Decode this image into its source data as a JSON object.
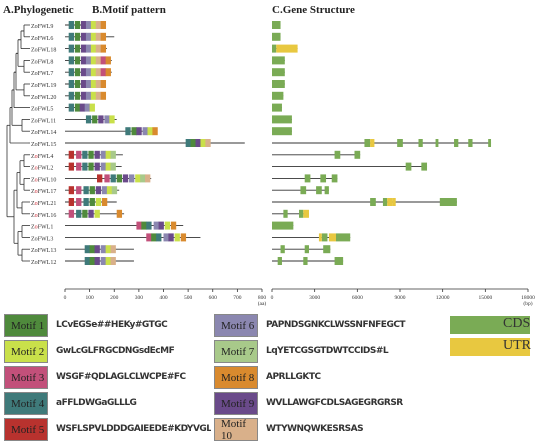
{
  "panels": {
    "phylo_title": "A.Phylogenetic",
    "motif_title": "B.Motif  pattern",
    "gene_title": "C.Gene Structure"
  },
  "genes": [
    "ZoFWL9",
    "ZoFWL6",
    "ZoFWL18",
    "ZoFWL8",
    "ZoFWL7",
    "ZoFWL19",
    "ZoFWL20",
    "ZoFWL5",
    "ZoFWL11",
    "ZoFWL14",
    "ZoFWL15",
    "ZoFWL4",
    "ZoFWL2",
    "ZoFWL10",
    "ZoFWL17",
    "ZoFWL21",
    "ZoFWL16",
    "ZoFWL1",
    "ZoFWL3",
    "ZoFWL13",
    "ZoFWL12"
  ],
  "red_label_genes": [
    "ZoFWL4",
    "ZoFWL2",
    "ZoFWL10",
    "ZoFWL17",
    "ZoFWL21",
    "ZoFWL16",
    "ZoFWL1"
  ],
  "motif_axis": {
    "ticks": [
      "0",
      "100",
      "200",
      "300",
      "400",
      "500",
      "600",
      "700",
      "800"
    ],
    "unit": "(aa)",
    "max": 800
  },
  "gene_axis": {
    "ticks": [
      "0",
      "3000",
      "6000",
      "9000",
      "12000",
      "15000",
      "18000"
    ],
    "unit": "(bp)",
    "max": 18000
  },
  "motif_colors": {
    "1": "#4f8a3c",
    "2": "#c9e04a",
    "3": "#c2507a",
    "4": "#3f7a7a",
    "5": "#b8322e",
    "6": "#8b87b0",
    "7": "#a8c98a",
    "8": "#d98a2e",
    "9": "#6a4a8a",
    "10": "#d9b08a"
  },
  "motif_legend": [
    {
      "label": "Motif 1",
      "color": "#4f8a3c",
      "logo": "LCvEGSe##HEKy#GTGC"
    },
    {
      "label": "Motif 2",
      "color": "#c9e04a",
      "logo": "GwLcGLFRGCDNGsdEcMF"
    },
    {
      "label": "Motif 3",
      "color": "#c2507a",
      "logo": "WSGF#QDLAGLCLWCPE#FC"
    },
    {
      "label": "Motif 4",
      "color": "#3f7a7a",
      "logo": "aFFLDWGaGLLLG"
    },
    {
      "label": "Motif 5",
      "color": "#b8322e",
      "logo": "WSFLSPVLDDDGAIEEDE#KDYVGLEVGDSEDLR"
    },
    {
      "label": "Motif 6",
      "color": "#8b87b0",
      "logo": "PAPNDSGNKCLWSSNFNFEGCT"
    },
    {
      "label": "Motif 7",
      "color": "#a8c98a",
      "logo": "LqYETCGSGTDWTCCIDS#L"
    },
    {
      "label": "Motif 8",
      "color": "#d98a2e",
      "logo": "APRLLGKTC"
    },
    {
      "label": "Motif 9",
      "color": "#6a4a8a",
      "logo": "WVLLAWGFCDLSAGEGRGRSR"
    },
    {
      "label": "Motif 10",
      "color": "#d9b08a",
      "logo": "WTYWNQWKESRSAS"
    }
  ],
  "structure_legend": [
    {
      "label": "CDS",
      "color": "#7aab55"
    },
    {
      "label": "UTR",
      "color": "#e8c840"
    }
  ],
  "motif_rows": [
    {
      "length": 160,
      "motifs": [
        [
          15,
          4
        ],
        [
          40,
          1
        ],
        [
          65,
          9
        ],
        [
          85,
          6
        ],
        [
          105,
          2
        ],
        [
          125,
          10
        ],
        [
          145,
          8
        ]
      ]
    },
    {
      "length": 200,
      "motifs": [
        [
          15,
          4
        ],
        [
          40,
          1
        ],
        [
          65,
          9
        ],
        [
          85,
          6
        ],
        [
          105,
          2
        ],
        [
          125,
          10
        ],
        [
          145,
          8
        ]
      ]
    },
    {
      "length": 170,
      "motifs": [
        [
          15,
          4
        ],
        [
          40,
          1
        ],
        [
          65,
          9
        ],
        [
          85,
          6
        ],
        [
          105,
          2
        ],
        [
          125,
          10
        ],
        [
          145,
          8
        ]
      ]
    },
    {
      "length": 190,
      "motifs": [
        [
          15,
          4
        ],
        [
          40,
          1
        ],
        [
          65,
          9
        ],
        [
          85,
          6
        ],
        [
          105,
          2
        ],
        [
          125,
          10
        ],
        [
          145,
          3
        ],
        [
          165,
          8
        ]
      ]
    },
    {
      "length": 190,
      "motifs": [
        [
          15,
          4
        ],
        [
          40,
          1
        ],
        [
          65,
          9
        ],
        [
          85,
          6
        ],
        [
          105,
          2
        ],
        [
          125,
          10
        ],
        [
          145,
          3
        ],
        [
          165,
          8
        ]
      ]
    },
    {
      "length": 165,
      "motifs": [
        [
          15,
          4
        ],
        [
          40,
          1
        ],
        [
          65,
          9
        ],
        [
          85,
          6
        ],
        [
          105,
          2
        ],
        [
          125,
          10
        ],
        [
          145,
          8
        ]
      ]
    },
    {
      "length": 165,
      "motifs": [
        [
          15,
          4
        ],
        [
          40,
          1
        ],
        [
          65,
          9
        ],
        [
          85,
          6
        ],
        [
          105,
          2
        ],
        [
          125,
          10
        ],
        [
          145,
          8
        ]
      ]
    },
    {
      "length": 120,
      "motifs": [
        [
          15,
          4
        ],
        [
          40,
          1
        ],
        [
          60,
          9
        ],
        [
          80,
          6
        ],
        [
          100,
          2
        ]
      ]
    },
    {
      "length": 210,
      "motifs": [
        [
          85,
          4
        ],
        [
          110,
          1
        ],
        [
          135,
          9
        ],
        [
          160,
          6
        ],
        [
          180,
          2
        ]
      ]
    },
    {
      "length": 370,
      "motifs": [
        [
          245,
          4
        ],
        [
          270,
          1
        ],
        [
          290,
          9
        ],
        [
          315,
          6
        ],
        [
          335,
          2
        ],
        [
          355,
          8
        ]
      ]
    },
    {
      "length": 730,
      "motifs": [
        [
          490,
          4
        ],
        [
          510,
          1
        ],
        [
          530,
          9
        ],
        [
          550,
          2
        ],
        [
          570,
          10
        ]
      ]
    },
    {
      "length": 235,
      "motifs": [
        [
          15,
          5
        ],
        [
          45,
          3
        ],
        [
          70,
          4
        ],
        [
          95,
          1
        ],
        [
          120,
          9
        ],
        [
          145,
          6
        ],
        [
          165,
          2
        ],
        [
          185,
          7
        ]
      ]
    },
    {
      "length": 230,
      "motifs": [
        [
          15,
          5
        ],
        [
          45,
          3
        ],
        [
          70,
          4
        ],
        [
          95,
          1
        ],
        [
          120,
          9
        ],
        [
          145,
          6
        ],
        [
          165,
          2
        ],
        [
          185,
          7
        ]
      ]
    },
    {
      "length": 350,
      "motifs": [
        [
          130,
          5
        ],
        [
          160,
          3
        ],
        [
          185,
          4
        ],
        [
          210,
          1
        ],
        [
          235,
          9
        ],
        [
          260,
          6
        ],
        [
          285,
          2
        ],
        [
          305,
          7
        ],
        [
          325,
          10
        ]
      ]
    },
    {
      "length": 220,
      "motifs": [
        [
          15,
          5
        ],
        [
          45,
          3
        ],
        [
          75,
          4
        ],
        [
          100,
          1
        ],
        [
          125,
          9
        ],
        [
          150,
          6
        ],
        [
          170,
          2
        ],
        [
          190,
          7
        ]
      ]
    },
    {
      "length": 210,
      "motifs": [
        [
          15,
          5
        ],
        [
          45,
          3
        ],
        [
          75,
          4
        ],
        [
          100,
          1
        ],
        [
          125,
          2
        ],
        [
          150,
          8
        ]
      ]
    },
    {
      "length": 240,
      "motifs": [
        [
          15,
          3
        ],
        [
          45,
          4
        ],
        [
          70,
          1
        ],
        [
          95,
          9
        ],
        [
          120,
          2
        ],
        [
          210,
          8
        ]
      ]
    },
    {
      "length": 480,
      "motifs": [
        [
          290,
          3
        ],
        [
          310,
          1
        ],
        [
          330,
          4
        ],
        [
          360,
          6
        ],
        [
          380,
          9
        ],
        [
          405,
          2
        ],
        [
          430,
          8
        ]
      ]
    },
    {
      "length": 550,
      "motifs": [
        [
          330,
          3
        ],
        [
          350,
          1
        ],
        [
          370,
          4
        ],
        [
          400,
          6
        ],
        [
          420,
          9
        ],
        [
          445,
          2
        ],
        [
          470,
          8
        ]
      ]
    },
    {
      "length": 280,
      "motifs": [
        [
          80,
          4
        ],
        [
          100,
          1
        ],
        [
          120,
          9
        ],
        [
          145,
          6
        ],
        [
          165,
          2
        ],
        [
          185,
          10
        ]
      ]
    },
    {
      "length": 280,
      "motifs": [
        [
          80,
          4
        ],
        [
          100,
          1
        ],
        [
          120,
          9
        ],
        [
          145,
          6
        ],
        [
          165,
          2
        ],
        [
          185,
          10
        ]
      ]
    }
  ],
  "gene_rows": [
    {
      "length": 600,
      "cds": [
        [
          0,
          600
        ]
      ],
      "utr": []
    },
    {
      "length": 600,
      "cds": [
        [
          0,
          600
        ]
      ],
      "utr": []
    },
    {
      "length": 1800,
      "cds": [
        [
          0,
          300
        ]
      ],
      "utr": [
        [
          300,
          1800
        ]
      ]
    },
    {
      "length": 900,
      "cds": [
        [
          0,
          900
        ]
      ],
      "utr": []
    },
    {
      "length": 900,
      "cds": [
        [
          0,
          900
        ]
      ],
      "utr": []
    },
    {
      "length": 900,
      "cds": [
        [
          0,
          900
        ]
      ],
      "utr": []
    },
    {
      "length": 800,
      "cds": [
        [
          0,
          800
        ]
      ],
      "utr": []
    },
    {
      "length": 700,
      "cds": [
        [
          0,
          700
        ]
      ],
      "utr": []
    },
    {
      "length": 1400,
      "cds": [
        [
          0,
          1400
        ]
      ],
      "utr": []
    },
    {
      "length": 1400,
      "cds": [
        [
          0,
          1400
        ]
      ],
      "utr": []
    },
    {
      "length": 15400,
      "cds": [
        [
          6500,
          6900
        ],
        [
          8800,
          9200
        ],
        [
          10300,
          10600
        ],
        [
          11500,
          11700
        ],
        [
          12800,
          13100
        ],
        [
          13800,
          14100
        ],
        [
          15200,
          15400
        ]
      ],
      "utr": [
        [
          6900,
          7200
        ]
      ]
    },
    {
      "length": 6200,
      "cds": [
        [
          4400,
          4800
        ],
        [
          5800,
          6200
        ]
      ],
      "utr": []
    },
    {
      "length": 10900,
      "cds": [
        [
          9400,
          9800
        ],
        [
          10500,
          10900
        ]
      ],
      "utr": []
    },
    {
      "length": 4600,
      "cds": [
        [
          2300,
          2700
        ],
        [
          3400,
          3800
        ],
        [
          4200,
          4600
        ]
      ],
      "utr": []
    },
    {
      "length": 4000,
      "cds": [
        [
          2000,
          2400
        ],
        [
          3100,
          3500
        ],
        [
          3700,
          4000
        ]
      ],
      "utr": []
    },
    {
      "length": 13000,
      "cds": [
        [
          6900,
          7300
        ],
        [
          7800,
          8100
        ],
        [
          11800,
          13000
        ]
      ],
      "utr": [
        [
          8100,
          8500
        ],
        [
          8500,
          8700
        ]
      ]
    },
    {
      "length": 2600,
      "cds": [
        [
          800,
          1100
        ],
        [
          1900,
          2200
        ]
      ],
      "utr": [
        [
          2200,
          2600
        ]
      ]
    },
    {
      "length": 1500,
      "cds": [
        [
          0,
          1500
        ]
      ],
      "utr": []
    },
    {
      "length": 5500,
      "cds": [
        [
          3500,
          3900
        ],
        [
          4500,
          5500
        ]
      ],
      "utr": [
        [
          3300,
          3500
        ],
        [
          4000,
          4500
        ]
      ]
    },
    {
      "length": 4100,
      "cds": [
        [
          600,
          900
        ],
        [
          2300,
          2600
        ],
        [
          3600,
          4100
        ]
      ],
      "utr": []
    },
    {
      "length": 5000,
      "cds": [
        [
          400,
          700
        ],
        [
          2200,
          2500
        ],
        [
          4400,
          5000
        ]
      ],
      "utr": []
    }
  ]
}
